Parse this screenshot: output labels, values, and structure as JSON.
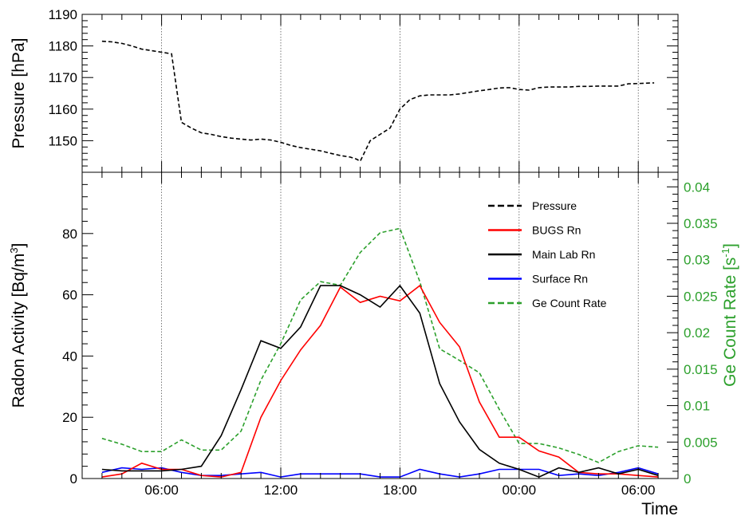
{
  "colors": {
    "pressure": "#000000",
    "bugs": "#ff0000",
    "main_lab": "#000000",
    "surface": "#0000ff",
    "ge": "#2ca02c",
    "grid": "#555555"
  },
  "chart_data": [
    {
      "type": "line",
      "panel": "top",
      "ylabel": "Pressure [hPa]",
      "ylim": [
        1140,
        1190
      ],
      "yticks": [
        1150,
        1160,
        1170,
        1180,
        1190
      ],
      "grid": "vertical dotted lines at x ticks",
      "series": [
        {
          "name": "Pressure",
          "style": "dashed",
          "color": "#000000",
          "x": [
            3.0,
            3.5,
            4.0,
            4.5,
            5.0,
            5.5,
            6.0,
            6.5,
            7.0,
            7.5,
            8.0,
            8.5,
            9.0,
            9.5,
            10.0,
            10.5,
            11.0,
            11.5,
            12.0,
            12.5,
            13.0,
            13.5,
            14.0,
            14.5,
            15.0,
            15.5,
            15.8,
            16.0,
            16.5,
            17.0,
            17.5,
            18.0,
            18.5,
            19.0,
            19.5,
            20.0,
            20.5,
            21.0,
            21.5,
            22.0,
            22.5,
            23.0,
            23.5,
            24.0,
            24.5,
            25.0,
            25.5,
            26.0,
            26.5,
            27.0,
            27.5,
            28.0,
            28.5,
            29.0,
            29.5,
            30.0,
            30.8
          ],
          "y": [
            1181.5,
            1181.3,
            1180.8,
            1180.0,
            1179.0,
            1178.5,
            1178.0,
            1177.5,
            1155.8,
            1154.0,
            1152.5,
            1152.0,
            1151.3,
            1150.8,
            1150.5,
            1150.2,
            1150.5,
            1150.2,
            1149.5,
            1148.5,
            1147.8,
            1147.3,
            1146.8,
            1146.0,
            1145.3,
            1144.8,
            1144.2,
            1143.5,
            1150.0,
            1152.0,
            1154.0,
            1160.0,
            1163.0,
            1164.2,
            1164.5,
            1164.5,
            1164.5,
            1164.8,
            1165.3,
            1165.8,
            1166.2,
            1166.7,
            1166.8,
            1166.2,
            1166.0,
            1166.8,
            1167.0,
            1167.0,
            1167.0,
            1167.2,
            1167.2,
            1167.3,
            1167.3,
            1167.3,
            1168.0,
            1168.1,
            1168.3
          ]
        }
      ]
    },
    {
      "type": "line",
      "panel": "bottom",
      "xlabel": "Time",
      "ylabel": "Radon Activity [Bq/m",
      "ylabel_sup": "3",
      "ylabel_end": "]",
      "y2label": "Ge Count Rate [s",
      "y2label_sup": "-1",
      "y2label_end": "]",
      "xlim": [
        2,
        32
      ],
      "xticks": [
        6,
        12,
        18,
        24,
        30
      ],
      "xticklabels": [
        "06:00",
        "12:00",
        "18:00",
        "00:00",
        "06:00"
      ],
      "ylim": [
        0,
        100
      ],
      "yticks": [
        0,
        20,
        40,
        60,
        80
      ],
      "y2lim": [
        0,
        0.042
      ],
      "y2ticks": [
        0,
        0.005,
        0.01,
        0.015,
        0.02,
        0.025,
        0.03,
        0.035,
        0.04
      ],
      "y2ticklabels": [
        "0",
        "0.005",
        "0.01",
        "0.015",
        "0.02",
        "0.025",
        "0.03",
        "0.035",
        "0.04"
      ],
      "grid": "vertical dotted lines at x ticks",
      "legend_position": "top-right",
      "legend": [
        "Pressure",
        "BUGS Rn",
        "Main Lab Rn",
        "Surface Rn",
        "Ge Count Rate"
      ],
      "series": [
        {
          "name": "BUGS Rn",
          "axis": "left",
          "style": "solid",
          "color": "#ff0000",
          "x": [
            3,
            4,
            5,
            6,
            7,
            8,
            9,
            10,
            11,
            12,
            13,
            14,
            15,
            16,
            17,
            18,
            19,
            20,
            21,
            22,
            23,
            24,
            25,
            26,
            27,
            28,
            29,
            30,
            31
          ],
          "y": [
            0.5,
            1.5,
            5,
            3,
            3,
            1,
            0.5,
            2,
            20,
            32,
            42,
            50,
            62.5,
            57.5,
            59.5,
            58,
            63,
            51,
            43,
            25,
            13.5,
            13.5,
            9,
            7,
            2,
            1.5,
            1.5,
            1,
            0.5
          ]
        },
        {
          "name": "Main Lab Rn",
          "axis": "left",
          "style": "solid",
          "color": "#000000",
          "x": [
            3,
            4,
            5,
            6,
            7,
            8,
            9,
            10,
            11,
            12,
            13,
            14,
            15,
            16,
            17,
            18,
            19,
            20,
            21,
            22,
            23,
            24,
            25,
            26,
            27,
            28,
            29,
            30,
            31
          ],
          "y": [
            3,
            2.5,
            2.5,
            2.5,
            3,
            4,
            14,
            29,
            45,
            42.5,
            49.5,
            63,
            63,
            60,
            56,
            63,
            54,
            31,
            18.5,
            9.5,
            5,
            3,
            0.5,
            3.5,
            2,
            3.5,
            1.5,
            3,
            1
          ]
        },
        {
          "name": "Surface Rn",
          "axis": "left",
          "style": "solid",
          "color": "#0000ff",
          "x": [
            3,
            4,
            5,
            6,
            7,
            8,
            9,
            10,
            11,
            12,
            13,
            14,
            15,
            16,
            17,
            18,
            19,
            20,
            21,
            22,
            23,
            24,
            25,
            26,
            27,
            28,
            29,
            30,
            31
          ],
          "y": [
            2,
            3.5,
            3,
            3.5,
            2,
            1,
            1,
            1.5,
            2,
            0.5,
            1.5,
            1.5,
            1.5,
            1.5,
            0.5,
            0.5,
            3,
            1.5,
            0.5,
            1.5,
            3,
            3,
            3,
            1,
            1.5,
            1,
            2,
            3.5,
            1.5
          ]
        },
        {
          "name": "Ge Count Rate",
          "axis": "right",
          "style": "dashed",
          "color": "#2ca02c",
          "x": [
            3,
            4,
            5,
            6,
            7,
            8,
            9,
            10,
            11,
            12,
            13,
            14,
            15,
            16,
            17,
            18,
            19,
            20,
            21,
            22,
            23,
            24,
            25,
            26,
            27,
            28,
            29,
            30,
            31
          ],
          "y": [
            0.0055,
            0.0047,
            0.0037,
            0.0037,
            0.0053,
            0.0039,
            0.0039,
            0.0065,
            0.0135,
            0.0185,
            0.0245,
            0.027,
            0.0265,
            0.031,
            0.0337,
            0.0343,
            0.027,
            0.0178,
            0.0162,
            0.0145,
            0.0095,
            0.0048,
            0.0048,
            0.0042,
            0.0033,
            0.0022,
            0.0037,
            0.0045,
            0.0043
          ]
        }
      ]
    }
  ]
}
